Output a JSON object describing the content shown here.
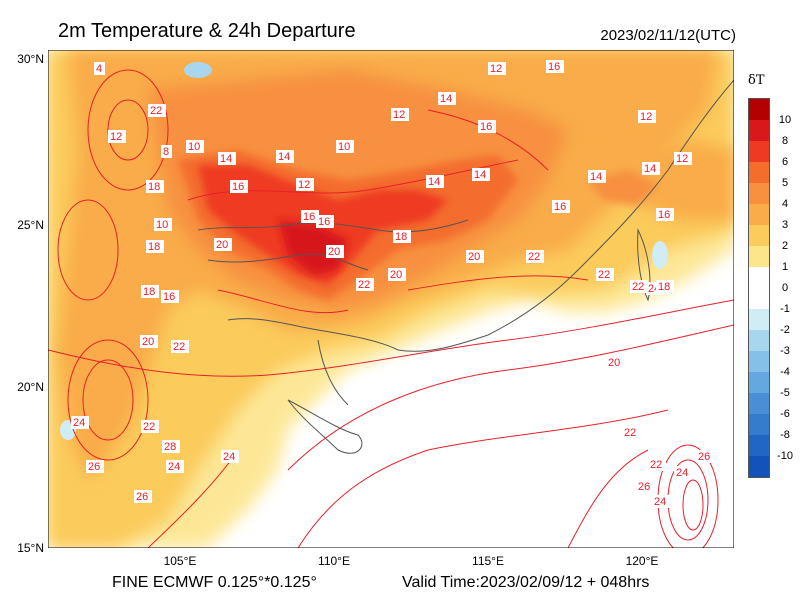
{
  "header": {
    "title": "2m Temperature & 24h Departure",
    "datetime": "2023/02/11/12(UTC)"
  },
  "footer": {
    "model": "FINE ECMWF 0.125°*0.125°",
    "valid": "Valid Time:2023/02/09/12 + 048hrs"
  },
  "axes": {
    "lat_labels": [
      "30°N",
      "25°N",
      "20°N",
      "15°N"
    ],
    "lon_labels": [
      "105°E",
      "110°E",
      "115°E",
      "120°E"
    ]
  },
  "colorbar": {
    "title": "δT",
    "labels": [
      "10",
      "8",
      "6",
      "5",
      "4",
      "3",
      "2",
      "1",
      "0",
      "-1",
      "-2",
      "-3",
      "-4",
      "-5",
      "-6",
      "-8",
      "-10"
    ],
    "colors": [
      "#b30000",
      "#d7191c",
      "#ee3a22",
      "#f46d2d",
      "#f7903f",
      "#f9ac48",
      "#fbcb5c",
      "#fde58c",
      "#ffffff",
      "#ffffff",
      "#d0ecf5",
      "#a9d6ef",
      "#86bfe8",
      "#65a7df",
      "#4a8fd5",
      "#357ccd",
      "#2266c4",
      "#1452bb"
    ]
  },
  "contour_labels": [
    "4",
    "12",
    "10",
    "14",
    "8",
    "16",
    "12",
    "10",
    "12",
    "14",
    "16",
    "14",
    "16",
    "18",
    "20",
    "18",
    "16",
    "20",
    "22",
    "20",
    "18",
    "20",
    "22",
    "22",
    "24",
    "22",
    "18",
    "20",
    "22",
    "22",
    "24",
    "26",
    "24",
    "28",
    "26",
    "22",
    "24",
    "16",
    "14",
    "12",
    "12",
    "12",
    "14",
    "14",
    "16",
    "16",
    "20",
    "22",
    "18",
    "24",
    "26",
    "26",
    "24",
    "22",
    "10",
    "14",
    "16"
  ]
}
